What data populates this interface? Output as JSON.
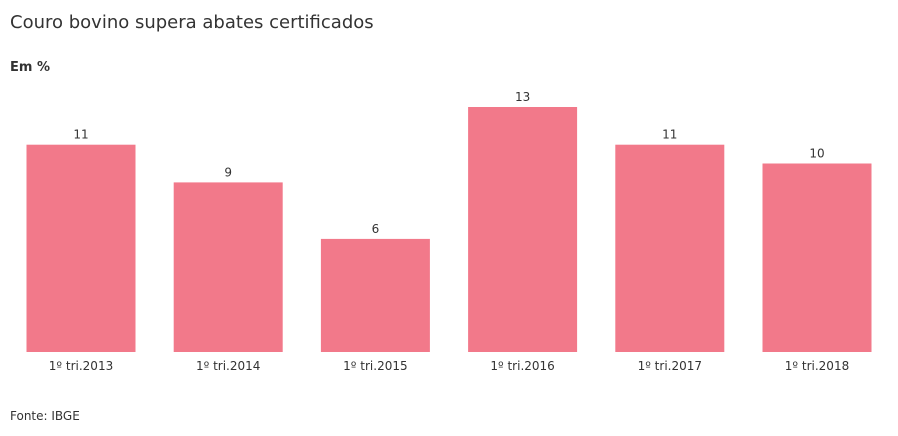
{
  "title": "Couro bovino supera abates certificados",
  "subtitle": "Em %",
  "source": "Fonte: IBGE",
  "colors": {
    "bar": "#f2798a"
  },
  "chart_data": {
    "type": "bar",
    "title": "Couro bovino supera abates certificados",
    "ylabel": "Em %",
    "categories": [
      "1º tri.2013",
      "1º tri.2014",
      "1º tri.2015",
      "1º tri.2016",
      "1º tri.2017",
      "1º tri.2018"
    ],
    "values": [
      11,
      9,
      6,
      13,
      11,
      10
    ],
    "ylim": [
      0,
      13
    ],
    "grid": false,
    "legend": "none"
  }
}
